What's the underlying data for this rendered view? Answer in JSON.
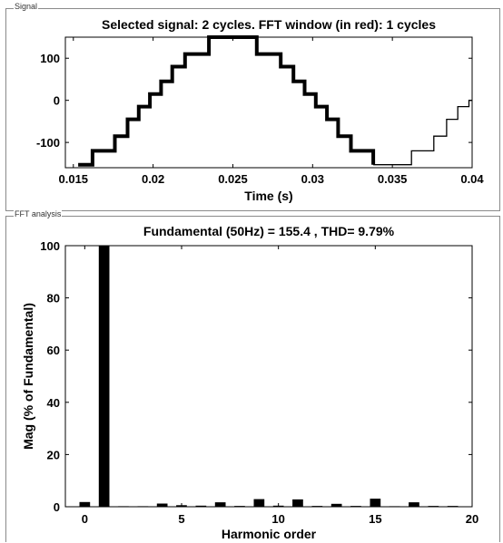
{
  "panels": {
    "signal_label": "Signal",
    "fft_label": "FFT analysis"
  },
  "chart_data": [
    {
      "type": "line",
      "title": "Selected signal: 2 cycles. FFT window (in red): 1 cycles",
      "xlabel": "Time (s)",
      "ylabel": "",
      "xlim": [
        0.0145,
        0.04
      ],
      "ylim": [
        -160,
        150
      ],
      "x_ticks": [
        "0.015",
        "0.02",
        "0.025",
        "0.03",
        "0.035",
        "0.04"
      ],
      "x_tick_values": [
        0.015,
        0.02,
        0.025,
        0.03,
        0.035,
        0.04
      ],
      "y_ticks": [
        "100",
        "0",
        "-100"
      ],
      "y_tick_values": [
        100,
        0,
        -100
      ],
      "series": [
        {
          "style": "thick",
          "x": [
            0.0153,
            0.0162,
            0.0162,
            0.0176,
            0.0176,
            0.0184,
            0.0184,
            0.0191,
            0.0191,
            0.0198,
            0.0198,
            0.0205,
            0.0205,
            0.0212,
            0.0212,
            0.022,
            0.022,
            0.0235,
            0.0235,
            0.0265,
            0.0265,
            0.028,
            0.028,
            0.0288,
            0.0288,
            0.0295,
            0.0295,
            0.0302,
            0.0302,
            0.0309,
            0.0309,
            0.0316,
            0.0316,
            0.0324,
            0.0324,
            0.0338,
            0.0338
          ],
          "y": [
            -153,
            -153,
            -120,
            -120,
            -85,
            -85,
            -45,
            -45,
            -15,
            -15,
            15,
            15,
            45,
            45,
            80,
            80,
            110,
            110,
            150,
            150,
            110,
            110,
            80,
            80,
            45,
            45,
            15,
            15,
            -15,
            -15,
            -45,
            -45,
            -85,
            -85,
            -120,
            -120,
            -153
          ]
        },
        {
          "style": "thin",
          "x": [
            0.0338,
            0.0362,
            0.0362,
            0.0376,
            0.0376,
            0.0384,
            0.0384,
            0.0391,
            0.0391,
            0.0398,
            0.0398,
            0.04
          ],
          "y": [
            -153,
            -153,
            -120,
            -120,
            -85,
            -85,
            -45,
            -45,
            -15,
            -15,
            0,
            0
          ]
        }
      ]
    },
    {
      "type": "bar",
      "title": "Fundamental (50Hz) = 155.4 , THD= 9.79%",
      "xlabel": "Harmonic order",
      "ylabel": "Mag (% of Fundamental)",
      "xlim": [
        -1,
        20
      ],
      "ylim": [
        0,
        100
      ],
      "x_ticks": [
        "0",
        "5",
        "10",
        "15",
        "20"
      ],
      "x_tick_values": [
        0,
        5,
        10,
        15,
        20
      ],
      "y_ticks": [
        "100",
        "80",
        "60",
        "40",
        "20",
        "0"
      ],
      "y_tick_values": [
        100,
        80,
        60,
        40,
        20,
        0
      ],
      "categories": [
        0,
        1,
        2,
        3,
        4,
        5,
        6,
        7,
        8,
        9,
        10,
        11,
        12,
        13,
        14,
        15,
        16,
        17,
        18,
        19
      ],
      "values": [
        1.8,
        100,
        0.2,
        0.2,
        1.2,
        0.6,
        0.4,
        1.7,
        0.3,
        2.9,
        0.4,
        2.8,
        0.3,
        1.1,
        0.3,
        3.1,
        0.2,
        1.7,
        0.3,
        0.3
      ]
    }
  ]
}
